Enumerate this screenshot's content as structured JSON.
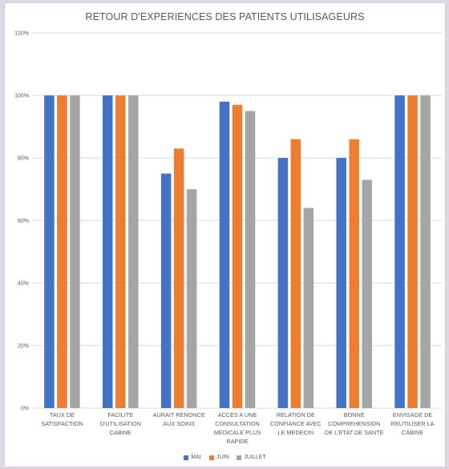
{
  "chart_data": {
    "type": "bar",
    "title": "RETOUR D'EXPERIENCES DES PATIENTS UTILISAGEURS",
    "xlabel": "",
    "ylabel": "",
    "ylim": [
      0,
      120
    ],
    "yticks": [
      "0%",
      "20%",
      "40%",
      "60%",
      "80%",
      "100%",
      "120%"
    ],
    "categories": [
      [
        "TAUX DE",
        "SATISFACTION"
      ],
      [
        "FACILITE",
        "D'UTILISATION",
        "CABINE"
      ],
      [
        "AURAIT RENONCE",
        "AUX SOINS"
      ],
      [
        "ACCES A UNE",
        "CONSULTATION",
        "MEDICALE PLUS",
        "RAPIDE"
      ],
      [
        "RELATION DE",
        "CONFIANCE AVEC",
        "LE MEDECIN"
      ],
      [
        "BONNE",
        "COMPREHENSION",
        "DE L'ETAT DE SANTE"
      ],
      [
        "ENVISAGE DE",
        "REUTILISER LA",
        "CABINE"
      ]
    ],
    "series": [
      {
        "name": "MAI",
        "color": "#4472c4",
        "values": [
          100,
          100,
          75,
          98,
          80,
          80,
          100
        ]
      },
      {
        "name": "JUIN",
        "color": "#ed7d31",
        "values": [
          100,
          100,
          83,
          97,
          86,
          86,
          100
        ]
      },
      {
        "name": "JUILLET",
        "color": "#a5a5a5",
        "values": [
          100,
          100,
          70,
          95,
          64,
          73,
          100
        ]
      }
    ],
    "grid": true,
    "gridColor": "#d9d9d9",
    "legend": "bottom"
  }
}
